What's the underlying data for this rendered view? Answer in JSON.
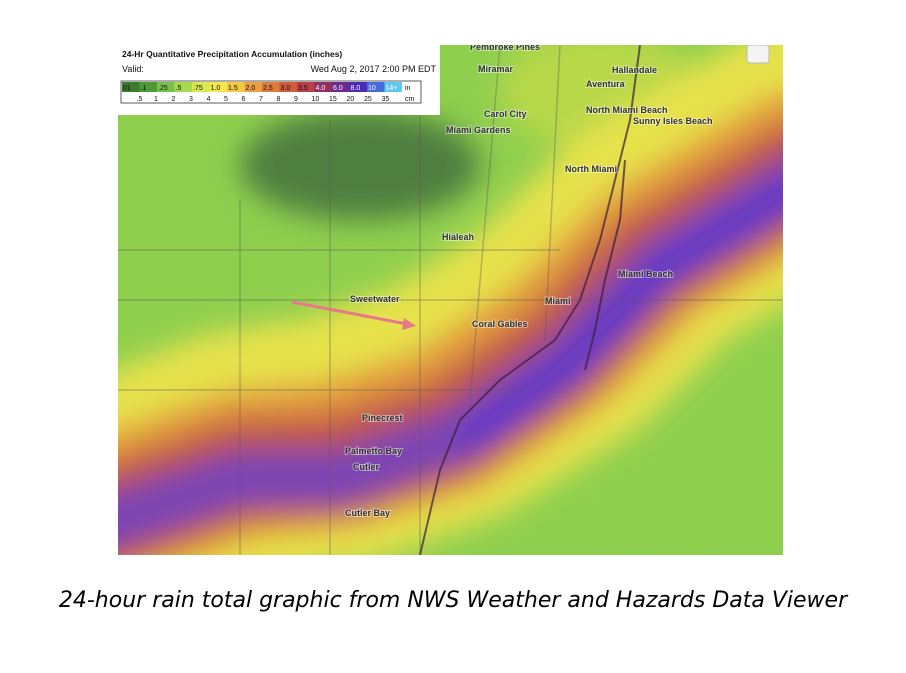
{
  "legend": {
    "title": "24-Hr Quantitative Precipitation Accumulation (inches)",
    "valid_label": "Valid:",
    "valid_time": "Wed Aug 2, 2017 2:00 PM EDT",
    "inch_labels": [
      "01",
      ".1",
      ".25",
      ".5",
      ".75",
      "1.0",
      "1.5",
      "2.0",
      "2.5",
      "3.0",
      "3.5",
      "4.0",
      "6.0",
      "8.0",
      "10",
      "14+"
    ],
    "inch_unit": "in",
    "cm_labels": [
      ".5",
      "1",
      "2",
      "3",
      "4",
      "5",
      "6",
      "7",
      "8",
      "9",
      "10",
      "15",
      "20",
      "25",
      "35"
    ],
    "cm_unit": "cm"
  },
  "places": [
    {
      "label": "Pembroke Pines"
    },
    {
      "label": "Miramar"
    },
    {
      "label": "Hallandale"
    },
    {
      "label": "Aventura"
    },
    {
      "label": "Carol City"
    },
    {
      "label": "Miami Gardens"
    },
    {
      "label": "North Miami Beach"
    },
    {
      "label": "Sunny Isles Beach"
    },
    {
      "label": "North Miami"
    },
    {
      "label": "Hialeah"
    },
    {
      "label": "Sweetwater"
    },
    {
      "label": "Miami"
    },
    {
      "label": "Coral Gables"
    },
    {
      "label": "Miami Beach"
    },
    {
      "label": "Pinecrest"
    },
    {
      "label": "Palmetto Bay"
    },
    {
      "label": "Cutler"
    },
    {
      "label": "Cutler Bay"
    }
  ],
  "caption": "24-hour rain total graphic from NWS Weather and Hazards Data Viewer"
}
